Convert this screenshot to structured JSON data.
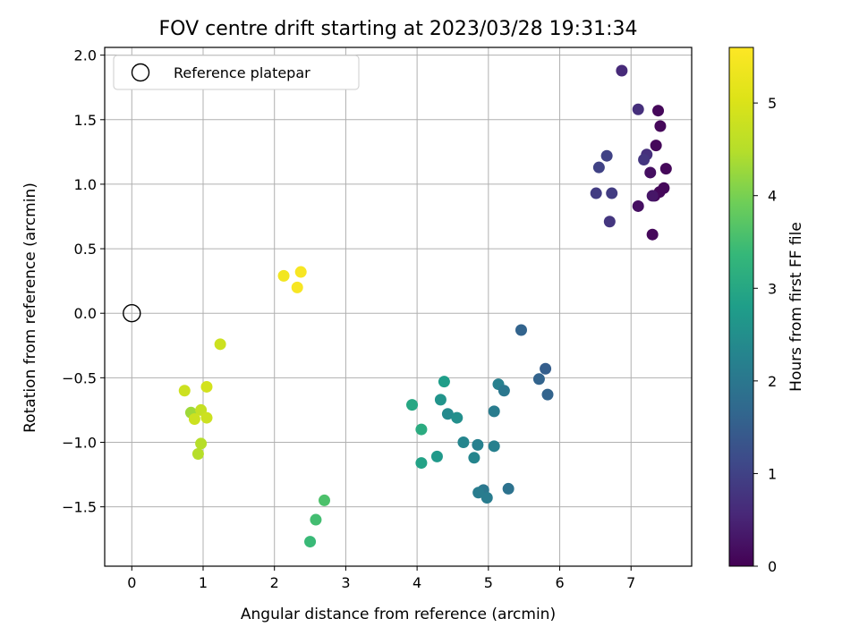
{
  "chart_data": {
    "type": "scatter",
    "title": "FOV centre drift starting at 2023/03/28 19:31:34",
    "xlabel": "Angular distance from reference (arcmin)",
    "ylabel": "Rotation from reference (arcmin)",
    "xlim": [
      -0.38,
      7.85
    ],
    "ylim": [
      -1.96,
      2.06
    ],
    "x_ticks": [
      0,
      1,
      2,
      3,
      4,
      5,
      6,
      7
    ],
    "x_tick_labels": [
      "0",
      "1",
      "2",
      "3",
      "4",
      "5",
      "6",
      "7"
    ],
    "y_ticks": [
      -1.5,
      -1.0,
      -0.5,
      0.0,
      0.5,
      1.0,
      1.5,
      2.0
    ],
    "y_tick_labels": [
      "−1.5",
      "−1.0",
      "−0.5",
      "0.0",
      "0.5",
      "1.0",
      "1.5",
      "2.0"
    ],
    "grid": true,
    "legend": {
      "position": "upper-left",
      "entries": [
        "Reference platepar"
      ]
    },
    "reference_point": {
      "x": 0.0,
      "y": 0.0
    },
    "colorbar": {
      "label": "Hours from first FF file",
      "colormap": "viridis",
      "range": [
        0,
        5.6
      ],
      "ticks": [
        0,
        1,
        2,
        3,
        4,
        5
      ],
      "tick_labels": [
        "0",
        "1",
        "2",
        "3",
        "4",
        "5"
      ]
    },
    "points": [
      {
        "x": 6.87,
        "y": 1.88,
        "c": 0.6
      },
      {
        "x": 7.1,
        "y": 1.58,
        "c": 0.7
      },
      {
        "x": 7.38,
        "y": 1.57,
        "c": 0.1
      },
      {
        "x": 7.41,
        "y": 1.45,
        "c": 0.1
      },
      {
        "x": 7.35,
        "y": 1.3,
        "c": 0.1
      },
      {
        "x": 6.66,
        "y": 1.22,
        "c": 1.0
      },
      {
        "x": 7.22,
        "y": 1.23,
        "c": 0.7
      },
      {
        "x": 7.18,
        "y": 1.19,
        "c": 0.8
      },
      {
        "x": 6.55,
        "y": 1.13,
        "c": 1.0
      },
      {
        "x": 7.49,
        "y": 1.12,
        "c": 0.1
      },
      {
        "x": 7.27,
        "y": 1.09,
        "c": 0.2
      },
      {
        "x": 7.46,
        "y": 0.97,
        "c": 0.1
      },
      {
        "x": 7.4,
        "y": 0.94,
        "c": 0.1
      },
      {
        "x": 6.51,
        "y": 0.93,
        "c": 0.9
      },
      {
        "x": 6.73,
        "y": 0.93,
        "c": 0.9
      },
      {
        "x": 7.33,
        "y": 0.91,
        "c": 0.1
      },
      {
        "x": 7.3,
        "y": 0.91,
        "c": 0.3
      },
      {
        "x": 7.1,
        "y": 0.83,
        "c": 0.2
      },
      {
        "x": 6.7,
        "y": 0.71,
        "c": 0.8
      },
      {
        "x": 7.3,
        "y": 0.61,
        "c": 0.1
      },
      {
        "x": 2.37,
        "y": 0.32,
        "c": 5.5
      },
      {
        "x": 2.13,
        "y": 0.29,
        "c": 5.4
      },
      {
        "x": 2.32,
        "y": 0.2,
        "c": 5.5
      },
      {
        "x": 1.24,
        "y": -0.24,
        "c": 4.8
      },
      {
        "x": 0.74,
        "y": -0.6,
        "c": 4.8
      },
      {
        "x": 1.05,
        "y": -0.57,
        "c": 4.9
      },
      {
        "x": 0.83,
        "y": -0.77,
        "c": 4.3
      },
      {
        "x": 0.97,
        "y": -0.75,
        "c": 4.7
      },
      {
        "x": 0.88,
        "y": -0.82,
        "c": 4.8
      },
      {
        "x": 1.05,
        "y": -0.81,
        "c": 4.8
      },
      {
        "x": 0.97,
        "y": -1.01,
        "c": 4.5
      },
      {
        "x": 0.93,
        "y": -1.09,
        "c": 4.5
      },
      {
        "x": 5.46,
        "y": -0.13,
        "c": 1.6
      },
      {
        "x": 5.8,
        "y": -0.43,
        "c": 1.5
      },
      {
        "x": 5.71,
        "y": -0.51,
        "c": 1.6
      },
      {
        "x": 4.38,
        "y": -0.53,
        "c": 2.8
      },
      {
        "x": 5.14,
        "y": -0.55,
        "c": 2.2
      },
      {
        "x": 5.22,
        "y": -0.6,
        "c": 2.0
      },
      {
        "x": 5.83,
        "y": -0.63,
        "c": 1.6
      },
      {
        "x": 4.33,
        "y": -0.67,
        "c": 2.6
      },
      {
        "x": 3.93,
        "y": -0.71,
        "c": 3.0
      },
      {
        "x": 4.43,
        "y": -0.78,
        "c": 2.4
      },
      {
        "x": 5.08,
        "y": -0.76,
        "c": 2.1
      },
      {
        "x": 4.56,
        "y": -0.81,
        "c": 2.5
      },
      {
        "x": 4.06,
        "y": -0.9,
        "c": 3.1
      },
      {
        "x": 4.65,
        "y": -1.0,
        "c": 2.3
      },
      {
        "x": 4.85,
        "y": -1.02,
        "c": 2.2
      },
      {
        "x": 5.08,
        "y": -1.03,
        "c": 2.2
      },
      {
        "x": 4.28,
        "y": -1.11,
        "c": 2.7
      },
      {
        "x": 4.8,
        "y": -1.12,
        "c": 2.3
      },
      {
        "x": 4.06,
        "y": -1.16,
        "c": 2.9
      },
      {
        "x": 5.28,
        "y": -1.36,
        "c": 1.9
      },
      {
        "x": 4.93,
        "y": -1.37,
        "c": 2.0
      },
      {
        "x": 4.86,
        "y": -1.39,
        "c": 2.1
      },
      {
        "x": 4.98,
        "y": -1.43,
        "c": 2.1
      },
      {
        "x": 2.7,
        "y": -1.45,
        "c": 3.6
      },
      {
        "x": 2.58,
        "y": -1.6,
        "c": 3.5
      },
      {
        "x": 2.5,
        "y": -1.77,
        "c": 3.4
      }
    ]
  }
}
